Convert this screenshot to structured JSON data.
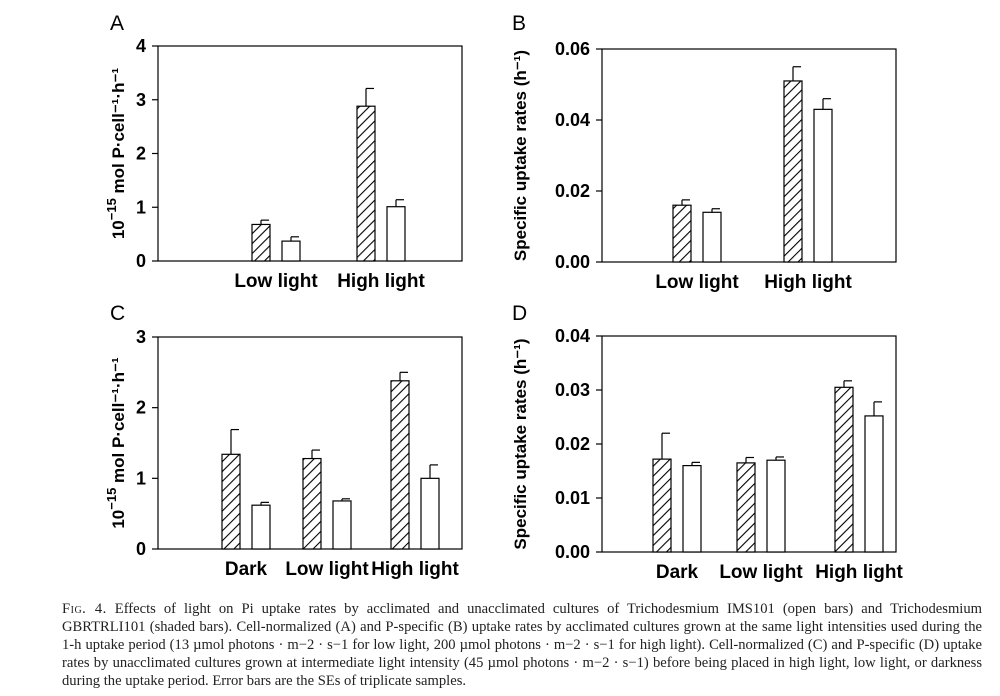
{
  "caption": {
    "label": "Fig. 4.",
    "text": "Effects of light on Pi uptake rates by acclimated and unacclimated cultures of Trichodesmium IMS101 (open bars) and Trichodesmium GBRTRLI101 (shaded bars). Cell-normalized (A) and P-specific (B) uptake rates by acclimated cultures grown at the same light intensities used during the 1-h uptake period (13 µmol photons · m−2 · s−1 for low light, 200 µmol photons · m−2 · s−1 for high light). Cell-normalized (C) and P-specific (D) uptake rates by unacclimated cultures grown at intermediate light intensity (45 µmol photons · m−2 · s−1) before being placed in high light, low light, or darkness during the uptake period. Error bars are the SEs of triplicate samples."
  },
  "colors": {
    "axis": "#000000",
    "bar_fill": "#ffffff",
    "hatch": "#000000"
  },
  "chart_data": [
    {
      "panel": "A",
      "type": "bar",
      "categories": [
        "Low light",
        "High light"
      ],
      "ylabel_base": "10",
      "ylabel_exp": "−15",
      "ylabel_rest": "mol P·cell⁻¹·h⁻¹",
      "ylim": [
        0,
        4
      ],
      "yticks": [
        "0",
        "1",
        "2",
        "3",
        "4"
      ],
      "ytick_values": [
        0,
        1,
        2,
        3,
        4
      ],
      "series": [
        {
          "name": "GBRTRLI101",
          "pattern": "hatched",
          "values": [
            0.68,
            2.88
          ],
          "errors": [
            0.08,
            0.33
          ]
        },
        {
          "name": "IMS101",
          "pattern": "open",
          "values": [
            0.37,
            1.01
          ],
          "errors": [
            0.08,
            0.13
          ]
        }
      ]
    },
    {
      "panel": "B",
      "type": "bar",
      "categories": [
        "Low light",
        "High light"
      ],
      "ylabel": "Specific uptake rates (h⁻¹)",
      "ylim": [
        0,
        0.06
      ],
      "yticks": [
        "0.00",
        "0.02",
        "0.04",
        "0.06"
      ],
      "ytick_values": [
        0,
        0.02,
        0.04,
        0.06
      ],
      "series": [
        {
          "name": "GBRTRLI101",
          "pattern": "hatched",
          "values": [
            0.016,
            0.051
          ],
          "errors": [
            0.0015,
            0.004
          ]
        },
        {
          "name": "IMS101",
          "pattern": "open",
          "values": [
            0.014,
            0.043
          ],
          "errors": [
            0.001,
            0.003
          ]
        }
      ]
    },
    {
      "panel": "C",
      "type": "bar",
      "categories": [
        "Dark",
        "Low light",
        "High light"
      ],
      "ylabel_base": "10",
      "ylabel_exp": "−15",
      "ylabel_rest": "mol P·cell⁻¹·h⁻¹",
      "ylim": [
        0,
        3
      ],
      "yticks": [
        "0",
        "1",
        "2",
        "3"
      ],
      "ytick_values": [
        0,
        1,
        2,
        3
      ],
      "series": [
        {
          "name": "GBRTRLI101",
          "pattern": "hatched",
          "values": [
            1.34,
            1.28,
            2.38
          ],
          "errors": [
            0.35,
            0.12,
            0.12
          ]
        },
        {
          "name": "IMS101",
          "pattern": "open",
          "values": [
            0.62,
            0.68,
            1.0
          ],
          "errors": [
            0.04,
            0.03,
            0.19
          ]
        }
      ]
    },
    {
      "panel": "D",
      "type": "bar",
      "categories": [
        "Dark",
        "Low light",
        "High light"
      ],
      "ylabel": "Specific uptake rates (h⁻¹)",
      "ylim": [
        0,
        0.04
      ],
      "yticks": [
        "0.00",
        "0.01",
        "0.02",
        "0.03",
        "0.04"
      ],
      "ytick_values": [
        0,
        0.01,
        0.02,
        0.03,
        0.04
      ],
      "series": [
        {
          "name": "GBRTRLI101",
          "pattern": "hatched",
          "values": [
            0.0172,
            0.0165,
            0.0305
          ],
          "errors": [
            0.0048,
            0.001,
            0.0012
          ]
        },
        {
          "name": "IMS101",
          "pattern": "open",
          "values": [
            0.016,
            0.017,
            0.0252
          ],
          "errors": [
            0.0006,
            0.0006,
            0.0026
          ]
        }
      ]
    }
  ]
}
